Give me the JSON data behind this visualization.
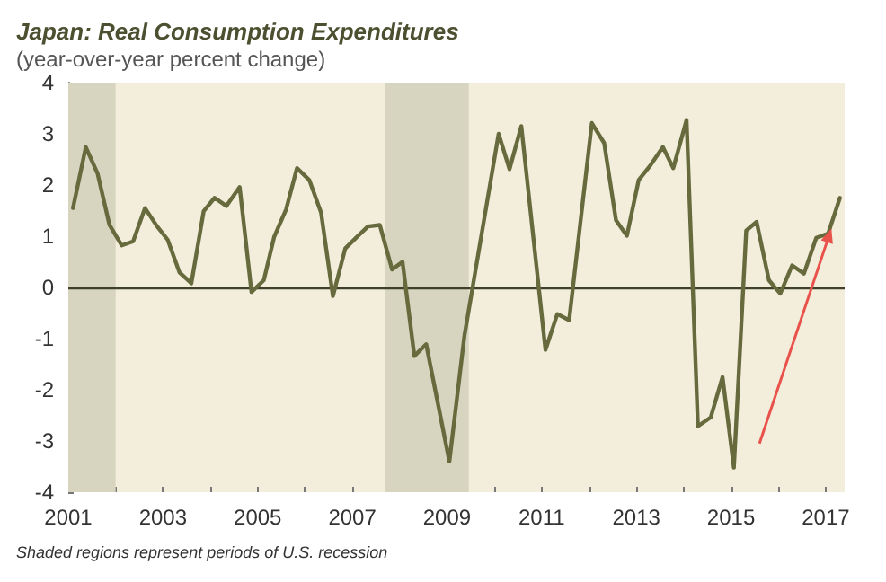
{
  "chart_data": {
    "type": "line",
    "title": "Japan: Real Consumption Expenditures",
    "subtitle": "(year-over-year percent change)",
    "x": [
      2001.1,
      2001.37,
      2001.62,
      2001.87,
      2002.13,
      2002.37,
      2002.62,
      2002.87,
      2003.1,
      2003.35,
      2003.6,
      2003.86,
      2004.09,
      2004.34,
      2004.62,
      2004.87,
      2005.13,
      2005.35,
      2005.6,
      2005.83,
      2006.09,
      2006.34,
      2006.59,
      2006.85,
      2007.1,
      2007.33,
      2007.58,
      2007.84,
      2008.06,
      2008.31,
      2008.56,
      2009.05,
      2009.37,
      2010.09,
      2010.32,
      2010.57,
      2011.08,
      2011.33,
      2011.58,
      2012.06,
      2012.32,
      2012.57,
      2012.8,
      2013.05,
      2013.3,
      2013.56,
      2013.78,
      2014.06,
      2014.3,
      2014.57,
      2014.82,
      2015.06,
      2015.32,
      2015.54,
      2015.8,
      2016.04,
      2016.29,
      2016.54,
      2016.8,
      2017.05,
      2017.3
    ],
    "series": [
      {
        "color": "#666a3c",
        "values": [
          1.55,
          2.74,
          2.22,
          1.22,
          0.82,
          0.9,
          1.55,
          1.2,
          0.93,
          0.29,
          0.08,
          1.49,
          1.75,
          1.59,
          1.96,
          -0.09,
          0.14,
          0.99,
          1.52,
          2.33,
          2.1,
          1.46,
          -0.17,
          0.76,
          0.99,
          1.19,
          1.22,
          0.35,
          0.5,
          -1.34,
          -1.11,
          -3.4,
          -0.93,
          3.0,
          2.31,
          3.15,
          -1.22,
          -0.52,
          -0.64,
          3.21,
          2.82,
          1.31,
          1.01,
          2.1,
          2.39,
          2.74,
          2.33,
          3.27,
          -2.71,
          -2.54,
          -1.75,
          -3.52,
          1.11,
          1.28,
          0.14,
          -0.12,
          0.43,
          0.27,
          0.97,
          1.05,
          1.75
        ]
      }
    ],
    "xlim": [
      2001,
      2017.4
    ],
    "xticks": [
      2001,
      {
        "value": 2002,
        "label": null
      },
      2003,
      {
        "value": 2004,
        "label": null
      },
      2005,
      {
        "value": 2006,
        "label": null
      },
      2007,
      {
        "value": 2008,
        "label": null
      },
      2009,
      {
        "value": 2010,
        "label": null
      },
      2011,
      {
        "value": 2012,
        "label": null
      },
      2013,
      {
        "value": 2014,
        "label": null
      },
      2015,
      {
        "value": 2016,
        "label": null
      },
      2017
    ],
    "ylim": [
      -4,
      4
    ],
    "yticks": [
      -4,
      -3,
      -2,
      -1,
      0,
      1,
      2,
      3,
      4
    ],
    "bands": [
      {
        "axis": "x",
        "from": 2001,
        "to": 2002,
        "color": "#d7d4c0"
      },
      {
        "axis": "x",
        "from": 2007.7,
        "to": 2009.46,
        "color": "#d7d4c0"
      }
    ],
    "ref_lines": [
      {
        "axis": "y",
        "value": 0,
        "color": "#3e4128"
      }
    ],
    "annotations": [
      "Shaded regions represent periods of U.S. recession"
    ],
    "grid": false,
    "marker": "none",
    "line_style": "solid"
  }
}
